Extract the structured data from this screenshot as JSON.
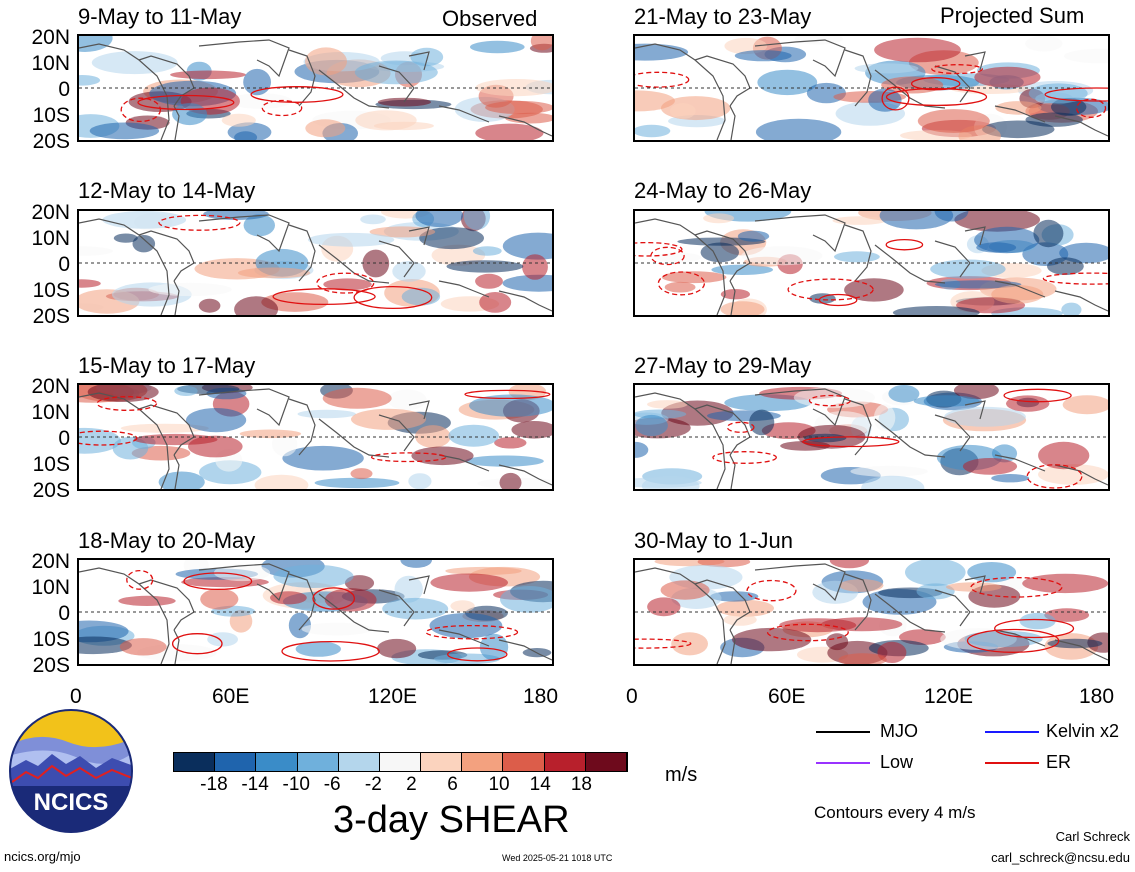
{
  "header": {
    "observed_label": "Observed",
    "projected_label": "Projected Sum"
  },
  "panels": [
    {
      "period": "9-May to 11-May",
      "column": "observed",
      "row": 0
    },
    {
      "period": "12-May to 14-May",
      "column": "observed",
      "row": 1
    },
    {
      "period": "15-May to 17-May",
      "column": "observed",
      "row": 2
    },
    {
      "period": "18-May to 20-May",
      "column": "observed",
      "row": 3
    },
    {
      "period": "21-May to 23-May",
      "column": "projected",
      "row": 0
    },
    {
      "period": "24-May to 26-May",
      "column": "projected",
      "row": 1
    },
    {
      "period": "27-May to 29-May",
      "column": "projected",
      "row": 2
    },
    {
      "period": "30-May to 1-Jun",
      "column": "projected",
      "row": 3
    }
  ],
  "y_axis_labels": [
    "20N",
    "10N",
    "0",
    "10S",
    "20S"
  ],
  "x_axis_labels": [
    "0",
    "60E",
    "120E",
    "180"
  ],
  "colorbar": {
    "title": "3-day SHEAR",
    "units": "m/s",
    "ticks": [
      "-18",
      "-14",
      "-10",
      "-6",
      "-2",
      "2",
      "6",
      "10",
      "14",
      "18"
    ],
    "colors": [
      "#0a2e5c",
      "#1f64ad",
      "#3a8cc8",
      "#6fb0dc",
      "#b4d6ec",
      "#f7f7f7",
      "#fbd3be",
      "#f3a17f",
      "#dc5d4a",
      "#b8202c",
      "#6e0a1c"
    ]
  },
  "legend": {
    "items": [
      {
        "label": "MJO",
        "color": "#000000"
      },
      {
        "label": "Kelvin x2",
        "color": "#1a1aff"
      },
      {
        "label": "Low",
        "color": "#9933ff"
      },
      {
        "label": "ER",
        "color": "#e01010"
      }
    ],
    "contour_note": "Contours every 4 m/s"
  },
  "logo": {
    "text": "NCICS"
  },
  "footer": {
    "site": "ncics.org/mjo",
    "timestamp": "Wed 2025-05-21 1018 UTC",
    "author": "Carl Schreck",
    "email": "carl_schreck@ncsu.edu"
  }
}
